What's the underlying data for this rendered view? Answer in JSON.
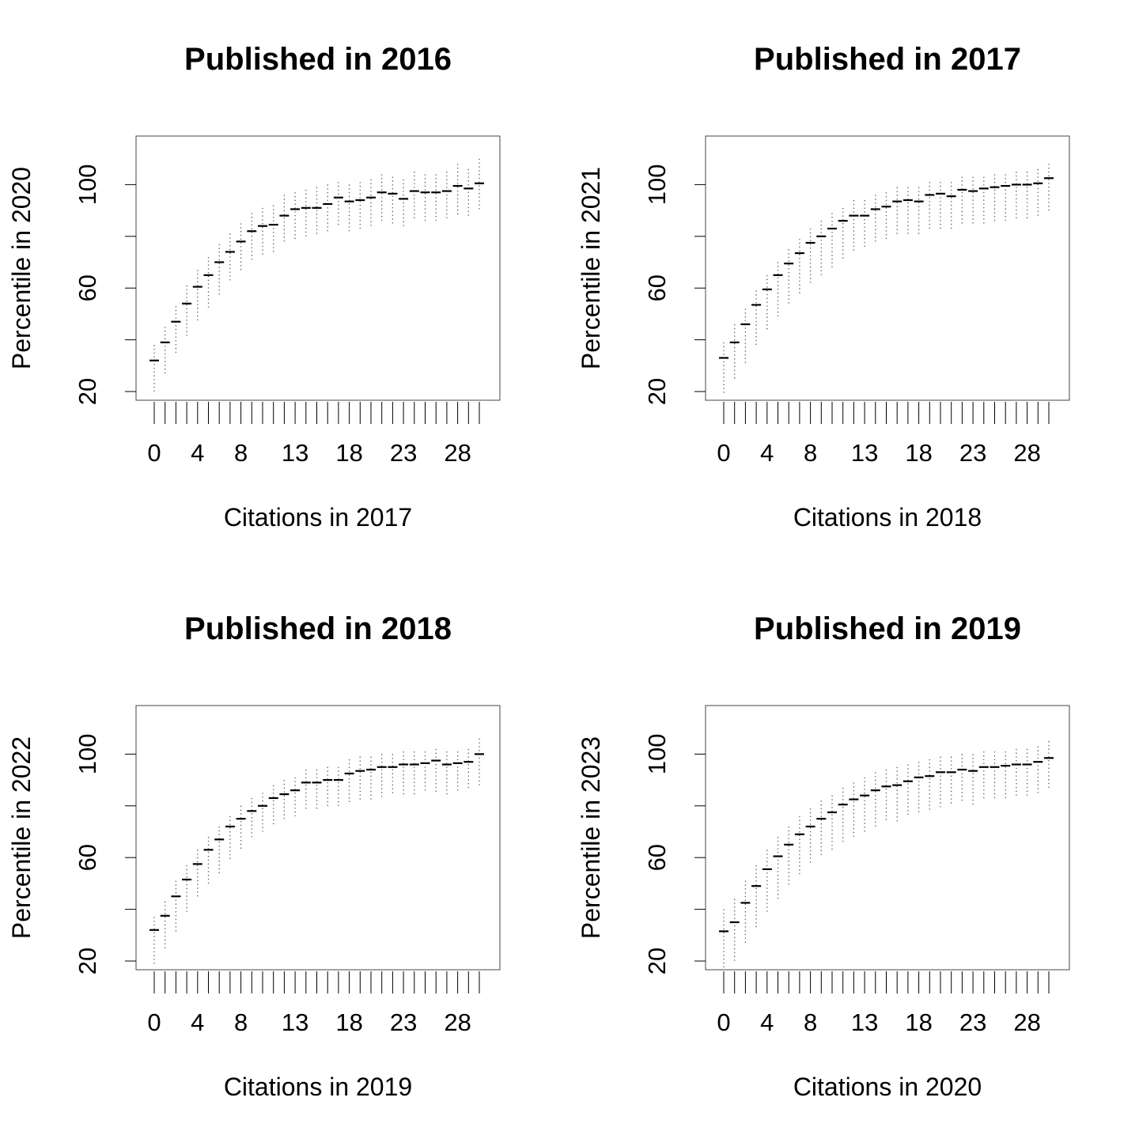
{
  "chart_data": [
    {
      "type": "boxplot",
      "title": "Published in 2016",
      "xlabel": "Citations in 2017",
      "ylabel": "Percentile in 2020",
      "ylim": [
        20,
        120
      ],
      "ytick_labels": [
        20,
        60,
        100
      ],
      "yticks": [
        20,
        40,
        60,
        80,
        100
      ],
      "xtick_labels": [
        "0",
        "4",
        "8",
        "13",
        "18",
        "23",
        "28"
      ],
      "xtick_label_categories": [
        0,
        4,
        8,
        13,
        18,
        23,
        28
      ],
      "categories": [
        0,
        1,
        2,
        3,
        4,
        5,
        6,
        7,
        8,
        9,
        10,
        11,
        12,
        13,
        14,
        15,
        16,
        17,
        18,
        19,
        20,
        21,
        22,
        23,
        24,
        25,
        26,
        27,
        28,
        29,
        30
      ],
      "medians": [
        32,
        39,
        47,
        54,
        60.5,
        65,
        70,
        74,
        78,
        82,
        84,
        84.5,
        88,
        90.5,
        91,
        91,
        92.5,
        95,
        93.5,
        94,
        95,
        97,
        96.5,
        94.5,
        97.5,
        97,
        97,
        97.5,
        99.5,
        98.5,
        100.5
      ],
      "upper": [
        38,
        45,
        53,
        61,
        67,
        72,
        77,
        81,
        85,
        89,
        91,
        92,
        96,
        97,
        98,
        99,
        100,
        101,
        100,
        101,
        102,
        104,
        103,
        102,
        105,
        104,
        104,
        105,
        108,
        106,
        110
      ],
      "lower": [
        20,
        26,
        34,
        41,
        47,
        52,
        57,
        62,
        66,
        70,
        72,
        73,
        77,
        79,
        80,
        80,
        81,
        84,
        82,
        83,
        84,
        86,
        85,
        84,
        86,
        86,
        86,
        87,
        88,
        88,
        90
      ],
      "grid": false
    },
    {
      "type": "boxplot",
      "title": "Published in 2017",
      "xlabel": "Citations in 2018",
      "ylabel": "Percentile in 2021",
      "ylim": [
        20,
        120
      ],
      "ytick_labels": [
        20,
        60,
        100
      ],
      "yticks": [
        20,
        40,
        60,
        80,
        100
      ],
      "xtick_labels": [
        "0",
        "4",
        "8",
        "13",
        "18",
        "23",
        "28"
      ],
      "xtick_label_categories": [
        0,
        4,
        8,
        13,
        18,
        23,
        28
      ],
      "categories": [
        0,
        1,
        2,
        3,
        4,
        5,
        6,
        7,
        8,
        9,
        10,
        11,
        12,
        13,
        14,
        15,
        16,
        17,
        18,
        19,
        20,
        21,
        22,
        23,
        24,
        25,
        26,
        27,
        28,
        29,
        30
      ],
      "medians": [
        33,
        39,
        46,
        53.5,
        59.5,
        65,
        69.5,
        73.5,
        77.5,
        80,
        83,
        86,
        88,
        88,
        90.5,
        91.5,
        93.5,
        94,
        93.5,
        96,
        96.5,
        95.5,
        98,
        97.5,
        98.5,
        99,
        99.5,
        100,
        100,
        100.5,
        102.5
      ],
      "upper": [
        39,
        46,
        52,
        59,
        65,
        70,
        75,
        79,
        83,
        86,
        89,
        91,
        94,
        94,
        96,
        97,
        99,
        99,
        99,
        101,
        101,
        101,
        103,
        103,
        103,
        104,
        104,
        105,
        105,
        106,
        108
      ],
      "lower": [
        19,
        24,
        31,
        37,
        43,
        49,
        54,
        58,
        62,
        65,
        68,
        71,
        74,
        75,
        77,
        78,
        80,
        80,
        80,
        82,
        83,
        82,
        84,
        84,
        85,
        85,
        86,
        86,
        86,
        87,
        89
      ],
      "grid": false
    },
    {
      "type": "boxplot",
      "title": "Published in 2018",
      "xlabel": "Citations in 2019",
      "ylabel": "Percentile in 2022",
      "ylim": [
        20,
        120
      ],
      "ytick_labels": [
        20,
        60,
        100
      ],
      "yticks": [
        20,
        40,
        60,
        80,
        100
      ],
      "xtick_labels": [
        "0",
        "4",
        "8",
        "13",
        "18",
        "23",
        "28"
      ],
      "xtick_label_categories": [
        0,
        4,
        8,
        13,
        18,
        23,
        28
      ],
      "categories": [
        0,
        1,
        2,
        3,
        4,
        5,
        6,
        7,
        8,
        9,
        10,
        11,
        12,
        13,
        14,
        15,
        16,
        17,
        18,
        19,
        20,
        21,
        22,
        23,
        24,
        25,
        26,
        27,
        28,
        29,
        30
      ],
      "medians": [
        32,
        37.5,
        45,
        51.5,
        57.5,
        63,
        67,
        72,
        75,
        78,
        80,
        83,
        84.5,
        86,
        89,
        89,
        90,
        90,
        92.5,
        93.5,
        94,
        95,
        95,
        96,
        96,
        96.5,
        97.5,
        96,
        96.5,
        97,
        100
      ],
      "upper": [
        37,
        43,
        51,
        57,
        63,
        68,
        72,
        76,
        80,
        83,
        85,
        88,
        90,
        91,
        94,
        94,
        95,
        95,
        98,
        99,
        99,
        100,
        100,
        101,
        101,
        101,
        102,
        101,
        101,
        102,
        106
      ],
      "lower": [
        19,
        25,
        31,
        38,
        44,
        49,
        54,
        59,
        63,
        67,
        70,
        72,
        74,
        76,
        78,
        78,
        79,
        79,
        81,
        82,
        82,
        83,
        84,
        84,
        84,
        85,
        85,
        84,
        85,
        86,
        88
      ],
      "grid": false
    },
    {
      "type": "boxplot",
      "title": "Published in 2019",
      "xlabel": "Citations in 2020",
      "ylabel": "Percentile in 2023",
      "ylim": [
        20,
        120
      ],
      "ytick_labels": [
        20,
        60,
        100
      ],
      "yticks": [
        20,
        40,
        60,
        80,
        100
      ],
      "xtick_labels": [
        "0",
        "4",
        "8",
        "13",
        "18",
        "23",
        "28"
      ],
      "xtick_label_categories": [
        0,
        4,
        8,
        13,
        18,
        23,
        28
      ],
      "categories": [
        0,
        1,
        2,
        3,
        4,
        5,
        6,
        7,
        8,
        9,
        10,
        11,
        12,
        13,
        14,
        15,
        16,
        17,
        18,
        19,
        20,
        21,
        22,
        23,
        24,
        25,
        26,
        27,
        28,
        29,
        30
      ],
      "medians": [
        31.5,
        35,
        42.5,
        49,
        55.5,
        60.5,
        65,
        69,
        72,
        75,
        77.5,
        80.5,
        82.5,
        84,
        86,
        87.5,
        88,
        89.5,
        91,
        91.5,
        93,
        93,
        94,
        93.5,
        95,
        95,
        95.5,
        96,
        96,
        97,
        98.5
      ],
      "upper": [
        40,
        44,
        51,
        57,
        63,
        68,
        72,
        76,
        79,
        82,
        84,
        87,
        89,
        91,
        93,
        94,
        95,
        96,
        97,
        98,
        99,
        99,
        100,
        100,
        101,
        101,
        101,
        102,
        102,
        103,
        105
      ],
      "lower": [
        17,
        20,
        26,
        32,
        38,
        44,
        49,
        53,
        57,
        60,
        63,
        66,
        68,
        70,
        72,
        74,
        74,
        76,
        77,
        78,
        79,
        80,
        81,
        80,
        82,
        82,
        82,
        83,
        83,
        84,
        86
      ],
      "grid": false
    }
  ]
}
